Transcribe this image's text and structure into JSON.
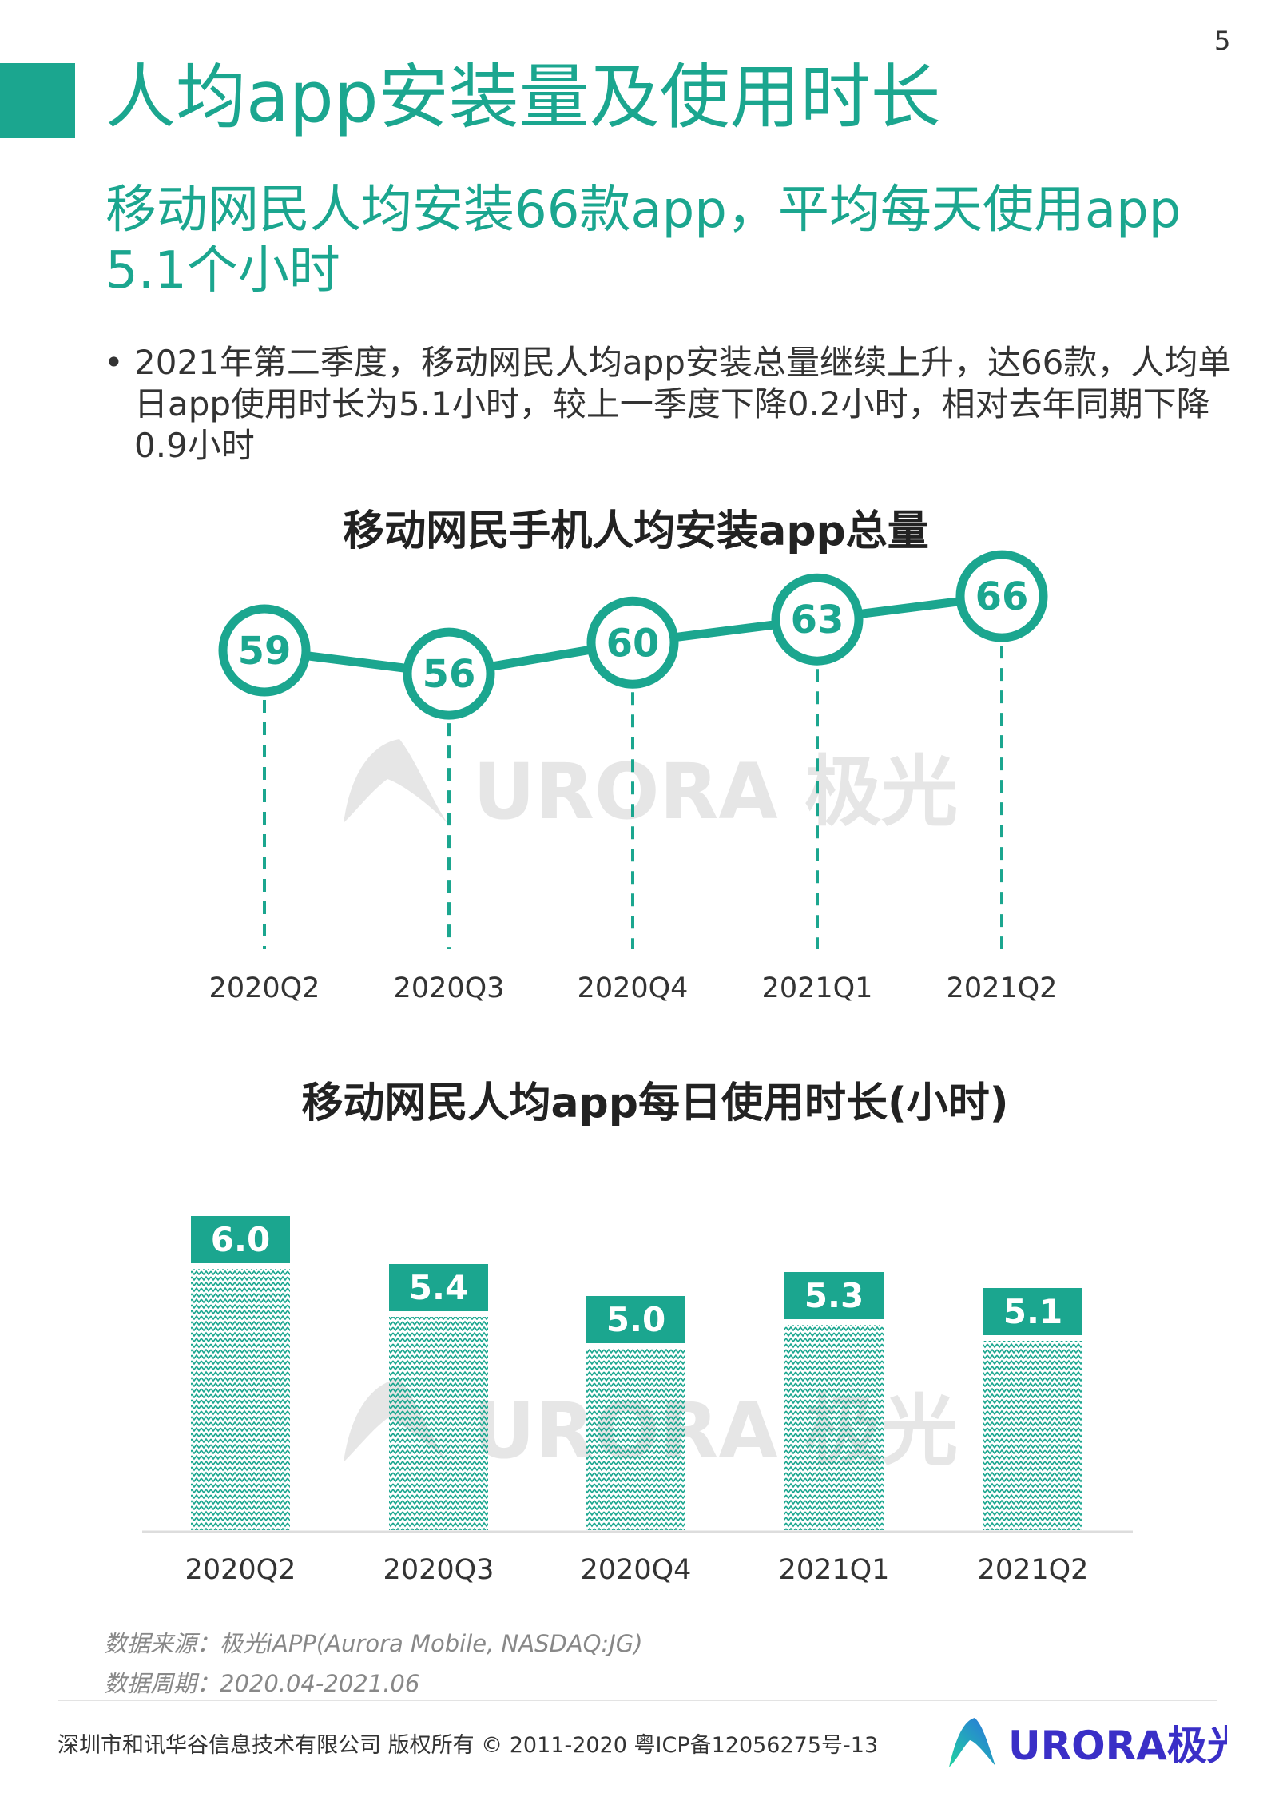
{
  "page_number": "5",
  "title": "人均app安装量及使用时长",
  "subtitle": "移动网民人均安装66款app，平均每天使用app 5.1个小时",
  "bullet": "2021年第二季度，移动网民人均app安装总量继续上升，达66款，人均单日app使用时长为5.1小时，较上一季度下降0.2小时，相对去年同期下降0.9小时",
  "bullet_icon": "bullet-dot",
  "colors": {
    "accent": "#1ba68f",
    "logo_blue": "#3a2fc7",
    "watermark": "#e6e6e6"
  },
  "watermark": "URORA 极光",
  "chart_data": [
    {
      "type": "line",
      "title": "移动网民手机人均安装app总量",
      "categories": [
        "2020Q2",
        "2020Q3",
        "2020Q4",
        "2021Q1",
        "2021Q2"
      ],
      "values": [
        59,
        56,
        60,
        63,
        66
      ],
      "grid": false
    },
    {
      "type": "bar",
      "title": "移动网民人均app每日使用时长(小时)",
      "categories": [
        "2020Q2",
        "2020Q3",
        "2020Q4",
        "2021Q1",
        "2021Q2"
      ],
      "values": [
        6.0,
        5.4,
        5.0,
        5.3,
        5.1
      ],
      "value_labels": [
        "6.0",
        "5.4",
        "5.0",
        "5.3",
        "5.1"
      ],
      "grid": false
    }
  ],
  "source": {
    "line1": "数据来源：极光iAPP(Aurora Mobile, NASDAQ:JG)",
    "line2": "数据周期：2020.04-2021.06"
  },
  "footer": {
    "copyright": "深圳市和讯华谷信息技术有限公司 版权所有 © 2011-2020 粤ICP备12056275号-13",
    "logo": "URORA极光"
  }
}
